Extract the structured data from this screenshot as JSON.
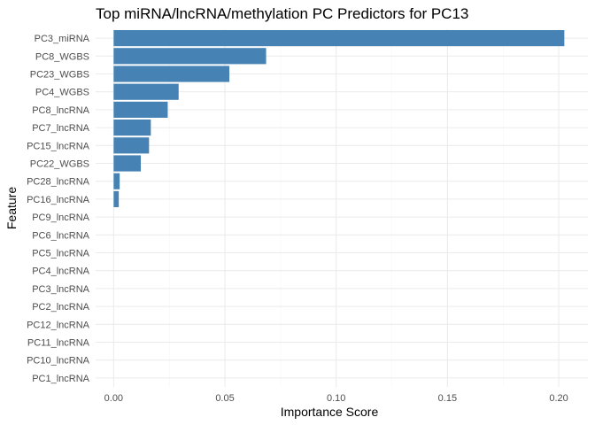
{
  "chart_data": {
    "type": "bar",
    "orientation": "horizontal",
    "title": "Top miRNA/lncRNA/methylation PC Predictors for PC13",
    "xlabel": "Importance Score",
    "ylabel": "Feature",
    "categories": [
      "PC3_miRNA",
      "PC8_WGBS",
      "PC23_WGBS",
      "PC4_WGBS",
      "PC8_lncRNA",
      "PC7_lncRNA",
      "PC15_lncRNA",
      "PC22_WGBS",
      "PC28_lncRNA",
      "PC16_lncRNA",
      "PC9_lncRNA",
      "PC6_lncRNA",
      "PC5_lncRNA",
      "PC4_lncRNA",
      "PC3_lncRNA",
      "PC2_lncRNA",
      "PC12_lncRNA",
      "PC11_lncRNA",
      "PC10_lncRNA",
      "PC1_lncRNA"
    ],
    "values": [
      0.2025,
      0.0685,
      0.052,
      0.0292,
      0.0243,
      0.0167,
      0.0159,
      0.0122,
      0.0027,
      0.0023,
      0,
      0,
      0,
      0,
      0,
      0,
      0,
      0,
      0,
      0
    ],
    "xlim": [
      -0.0081,
      0.2131
    ],
    "xticks": [
      0.0,
      0.05,
      0.1,
      0.15,
      0.2
    ],
    "xtick_labels": [
      "0.00",
      "0.05",
      "0.10",
      "0.15",
      "0.20"
    ],
    "bar_color": "#4682B4",
    "grid": true,
    "legend": false
  }
}
